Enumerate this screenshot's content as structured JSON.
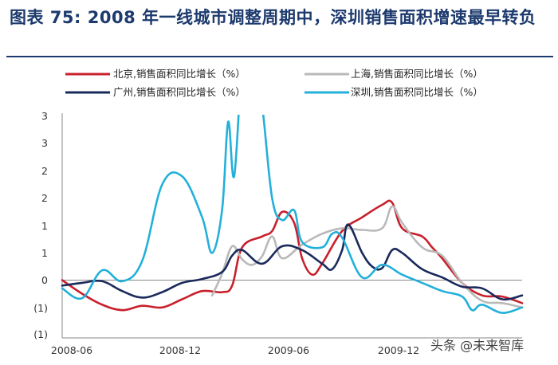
{
  "title": "图表 75: 2008 年一线城市调整周期中，深圳销售面积增速最早转负",
  "watermark": "头条 @未来智库",
  "colors": {
    "beijing": "#c8202c",
    "shanghai": "#b9b9b9",
    "guangzhou": "#1b2a5c",
    "shenzhen": "#23b0da",
    "axis": "#888888",
    "title": "#1d3a6e"
  },
  "chart_data": {
    "type": "line",
    "x_tick_labels": [
      "2008-06",
      "2008-12",
      "2009-06",
      "2009-12"
    ],
    "x_range": [
      0,
      23
    ],
    "y_tick_labels": [
      "3",
      "3",
      "2",
      "2",
      "1",
      "1",
      "0",
      "(1)",
      "(1)"
    ],
    "y_range": [
      -1,
      3
    ],
    "zero_line": true,
    "grid": false,
    "legend_position": "top",
    "series": [
      {
        "name": "北京,销售面积同比增长（%）",
        "color_key": "beijing",
        "points": [
          [
            0,
            0.0
          ],
          [
            1,
            -0.25
          ],
          [
            2,
            -0.45
          ],
          [
            3,
            -0.55
          ],
          [
            4,
            -0.47
          ],
          [
            5,
            -0.5
          ],
          [
            6,
            -0.35
          ],
          [
            7,
            -0.2
          ],
          [
            8,
            -0.22
          ],
          [
            8.5,
            -0.1
          ],
          [
            9,
            0.6
          ],
          [
            10,
            0.8
          ],
          [
            10.5,
            0.9
          ],
          [
            11,
            1.25
          ],
          [
            11.6,
            1.05
          ],
          [
            12,
            0.4
          ],
          [
            12.5,
            0.1
          ],
          [
            13,
            0.3
          ],
          [
            14,
            0.9
          ],
          [
            15,
            1.15
          ],
          [
            16,
            1.38
          ],
          [
            16.5,
            1.42
          ],
          [
            17,
            0.95
          ],
          [
            18,
            0.8
          ],
          [
            18.5,
            0.6
          ],
          [
            19,
            0.4
          ],
          [
            20,
            -0.05
          ],
          [
            21,
            -0.28
          ],
          [
            22,
            -0.3
          ],
          [
            23,
            -0.42
          ]
        ]
      },
      {
        "name": "上海,销售面积同比增长（%）",
        "color_key": "shanghai",
        "points": [
          [
            7.5,
            -0.28
          ],
          [
            8,
            0.12
          ],
          [
            8.5,
            0.62
          ],
          [
            9,
            0.38
          ],
          [
            9.5,
            0.28
          ],
          [
            10,
            0.44
          ],
          [
            10.5,
            0.8
          ],
          [
            11,
            0.4
          ],
          [
            12,
            0.65
          ],
          [
            13,
            0.85
          ],
          [
            14,
            0.95
          ],
          [
            15,
            0.92
          ],
          [
            16,
            0.95
          ],
          [
            16.5,
            1.35
          ],
          [
            17,
            1.05
          ],
          [
            18,
            0.6
          ],
          [
            19,
            0.45
          ],
          [
            20,
            -0.05
          ],
          [
            21,
            -0.38
          ],
          [
            22,
            -0.42
          ],
          [
            23,
            -0.5
          ]
        ]
      },
      {
        "name": "广州,销售面积同比增长（%）",
        "color_key": "guangzhou",
        "points": [
          [
            0,
            -0.1
          ],
          [
            1,
            -0.05
          ],
          [
            2,
            -0.02
          ],
          [
            3,
            -0.2
          ],
          [
            4,
            -0.32
          ],
          [
            5,
            -0.22
          ],
          [
            6,
            -0.05
          ],
          [
            7,
            0.02
          ],
          [
            8,
            0.15
          ],
          [
            8.5,
            0.45
          ],
          [
            9,
            0.55
          ],
          [
            10,
            0.3
          ],
          [
            11,
            0.62
          ],
          [
            12,
            0.55
          ],
          [
            13,
            0.3
          ],
          [
            13.5,
            0.2
          ],
          [
            14,
            0.55
          ],
          [
            14.3,
            1.02
          ],
          [
            15,
            0.5
          ],
          [
            15.5,
            0.25
          ],
          [
            16,
            0.22
          ],
          [
            16.5,
            0.55
          ],
          [
            17,
            0.5
          ],
          [
            18,
            0.2
          ],
          [
            19,
            0.05
          ],
          [
            20,
            -0.12
          ],
          [
            21,
            -0.15
          ],
          [
            22,
            -0.35
          ],
          [
            23,
            -0.28
          ]
        ]
      },
      {
        "name": "深圳,销售面积同比增长（%）",
        "color_key": "shenzhen",
        "points": [
          [
            0,
            -0.15
          ],
          [
            1,
            -0.33
          ],
          [
            2,
            0.18
          ],
          [
            3,
            -0.02
          ],
          [
            4,
            0.35
          ],
          [
            5,
            1.75
          ],
          [
            6,
            1.9
          ],
          [
            7,
            1.15
          ],
          [
            7.5,
            0.5
          ],
          [
            8,
            1.3
          ],
          [
            8.3,
            2.9
          ],
          [
            8.6,
            1.9
          ],
          [
            9,
            3.9
          ],
          [
            9.5,
            4.4
          ],
          [
            10,
            3.2
          ],
          [
            10.5,
            1.5
          ],
          [
            11,
            1.1
          ],
          [
            11.6,
            1.28
          ],
          [
            12,
            0.7
          ],
          [
            13,
            0.6
          ],
          [
            13.5,
            0.85
          ],
          [
            14,
            0.78
          ],
          [
            15,
            0.05
          ],
          [
            16,
            0.28
          ],
          [
            17,
            0.1
          ],
          [
            18,
            -0.05
          ],
          [
            19,
            -0.2
          ],
          [
            20,
            -0.3
          ],
          [
            20.5,
            -0.55
          ],
          [
            21,
            -0.45
          ],
          [
            22,
            -0.6
          ],
          [
            23,
            -0.5
          ]
        ]
      }
    ]
  }
}
